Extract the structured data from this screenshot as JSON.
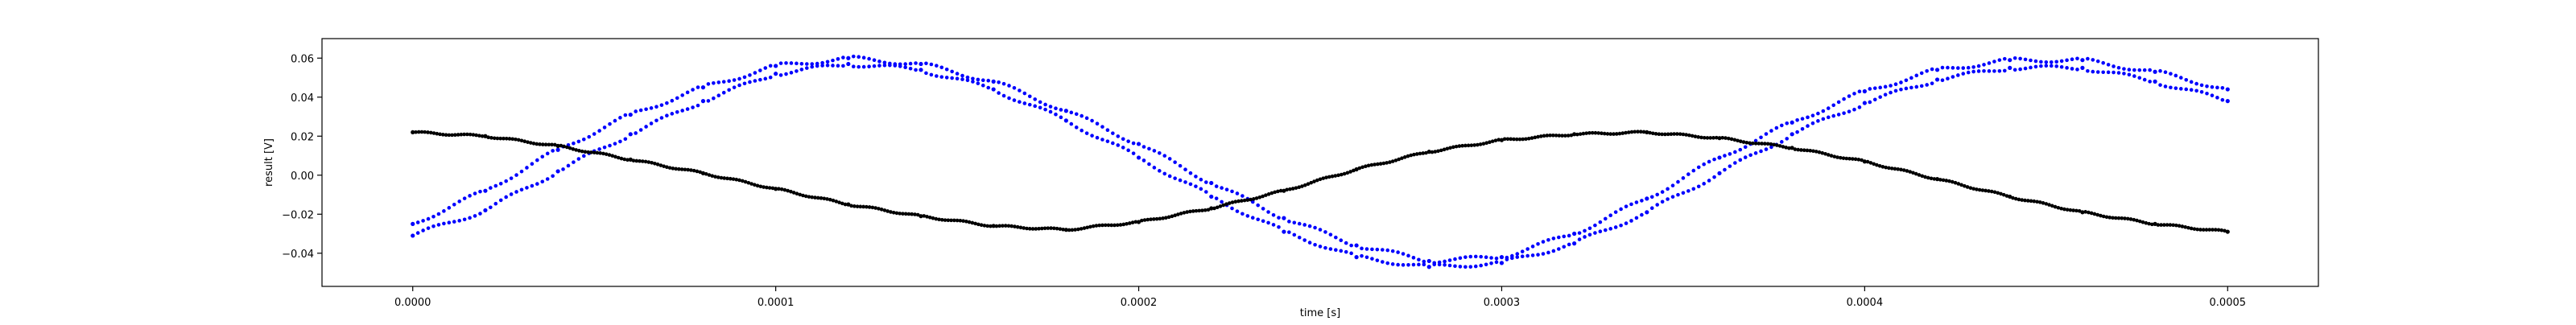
{
  "chart_data": {
    "type": "scatter",
    "title": "",
    "xlabel": "time [s]",
    "ylabel": "result [V]",
    "xlim": [
      -2.5e-05,
      0.000525
    ],
    "ylim": [
      -0.057,
      0.07
    ],
    "xticks": [
      0.0,
      0.0001,
      0.0002,
      0.0003,
      0.0004,
      0.0005
    ],
    "xtick_labels": [
      "0.0000",
      "0.0001",
      "0.0002",
      "0.0003",
      "0.0004",
      "0.0005"
    ],
    "yticks": [
      -0.04,
      -0.02,
      0.0,
      0.02,
      0.04,
      0.06
    ],
    "ytick_labels": [
      "−0.04",
      "−0.02",
      "0.00",
      "0.02",
      "0.04",
      "0.06"
    ],
    "grid": false,
    "legend": "none",
    "series": [
      {
        "color": "#0000ff",
        "marker": "dot",
        "x": [
          0.0,
          2e-05,
          4e-05,
          6e-05,
          8e-05,
          0.0001,
          0.00012,
          0.00014,
          0.00016,
          0.00018,
          0.0002,
          0.00022,
          0.00024,
          0.00026,
          0.00028,
          0.0003,
          0.00032,
          0.00034,
          0.00036,
          0.00038,
          0.0004,
          0.00042,
          0.00044,
          0.00046,
          0.00048,
          0.0005
        ],
        "y": [
          -0.031,
          -0.018,
          0.002,
          0.021,
          0.038,
          0.052,
          0.057,
          0.054,
          0.044,
          0.028,
          0.009,
          -0.011,
          -0.029,
          -0.042,
          -0.047,
          -0.045,
          -0.035,
          -0.019,
          0.001,
          0.021,
          0.037,
          0.049,
          0.055,
          0.055,
          0.048,
          0.038
        ]
      },
      {
        "color": "#0000ff",
        "marker": "dot",
        "x": [
          0.0,
          2e-05,
          4e-05,
          6e-05,
          8e-05,
          0.0001,
          0.00012,
          0.00014,
          0.00016,
          0.00018,
          0.0002,
          0.00022,
          0.00024,
          0.00026,
          0.00028,
          0.0003,
          0.00032,
          0.00034,
          0.00036,
          0.00038,
          0.0004,
          0.00042,
          0.00044,
          0.00046,
          0.00048,
          0.0005
        ],
        "y": [
          -0.025,
          -0.008,
          0.013,
          0.031,
          0.045,
          0.056,
          0.06,
          0.057,
          0.048,
          0.033,
          0.016,
          -0.004,
          -0.022,
          -0.036,
          -0.044,
          -0.042,
          -0.03,
          -0.012,
          0.009,
          0.027,
          0.043,
          0.054,
          0.059,
          0.059,
          0.053,
          0.044
        ]
      },
      {
        "color": "#000000",
        "marker": "dot",
        "x": [
          0.0,
          2e-05,
          4e-05,
          6e-05,
          8e-05,
          0.0001,
          0.00012,
          0.00014,
          0.00016,
          0.00018,
          0.0002,
          0.00022,
          0.00024,
          0.00026,
          0.00028,
          0.0003,
          0.00032,
          0.00034,
          0.00036,
          0.00038,
          0.0004,
          0.00042,
          0.00044,
          0.00046,
          0.00048,
          0.0005
        ],
        "y": [
          0.022,
          0.02,
          0.015,
          0.008,
          0.001,
          -0.007,
          -0.015,
          -0.021,
          -0.026,
          -0.028,
          -0.024,
          -0.017,
          -0.008,
          0.003,
          0.012,
          0.018,
          0.021,
          0.022,
          0.019,
          0.014,
          0.007,
          -0.002,
          -0.011,
          -0.019,
          -0.025,
          -0.029
        ]
      }
    ]
  }
}
